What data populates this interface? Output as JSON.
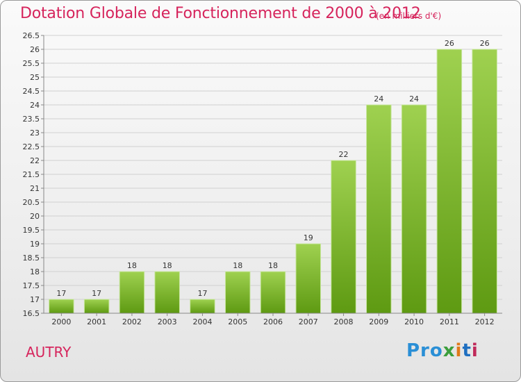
{
  "header": {
    "title": "Dotation Globale de Fonctionnement de 2000 à 2012",
    "subtitle": "(en milliers d'€)"
  },
  "footer": {
    "town": "AUTRY",
    "logo": [
      "Pro",
      "x",
      "i",
      "t",
      "i"
    ]
  },
  "colors": {
    "title": "#d6245c",
    "bar_light": "#9fd150",
    "bar_dark": "#5e9a12"
  },
  "chart_data": {
    "type": "bar",
    "categories": [
      "2000",
      "2001",
      "2002",
      "2003",
      "2004",
      "2005",
      "2006",
      "2007",
      "2008",
      "2009",
      "2010",
      "2011",
      "2012"
    ],
    "values": [
      17,
      17,
      18,
      18,
      17,
      18,
      18,
      19,
      22,
      24,
      24,
      26,
      26
    ],
    "data_labels": [
      "17",
      "17",
      "18",
      "18",
      "17",
      "18",
      "18",
      "19",
      "22",
      "24",
      "24",
      "26",
      "26"
    ],
    "yticks": [
      "16.5",
      "17",
      "17.5",
      "18",
      "18.5",
      "19",
      "19.5",
      "20",
      "20.5",
      "21",
      "21.5",
      "22",
      "22.5",
      "23",
      "23.5",
      "24",
      "24.5",
      "25",
      "25.5",
      "26",
      "26.5"
    ],
    "ylim": [
      16.5,
      26.5
    ],
    "grid": true
  }
}
